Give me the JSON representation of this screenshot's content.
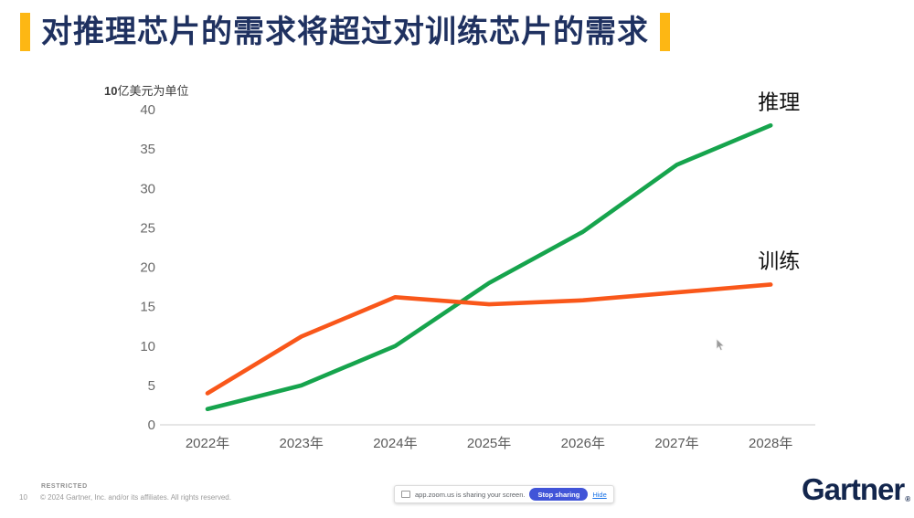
{
  "title": {
    "text": "对推理芯片的需求将超过对训练芯片的需求"
  },
  "chart_data": {
    "type": "line",
    "title": "",
    "unit_label_bold": "10",
    "unit_label_rest": "亿美元为单位",
    "categories": [
      "2022年",
      "2023年",
      "2024年",
      "2025年",
      "2026年",
      "2027年",
      "2028年"
    ],
    "series": [
      {
        "name": "推理",
        "color": "#16a44d",
        "values": [
          2,
          5,
          10,
          18,
          24.5,
          33,
          38
        ]
      },
      {
        "name": "训练",
        "color": "#f9571a",
        "values": [
          4,
          11.2,
          16.2,
          15.3,
          15.8,
          16.8,
          17.8
        ]
      }
    ],
    "ylim": [
      0,
      40
    ],
    "yticks": [
      0,
      5,
      10,
      15,
      20,
      25,
      30,
      35,
      40
    ],
    "grid": false,
    "legend_position": "end-of-line-labels"
  },
  "footer": {
    "restricted": "RESTRICTED",
    "page_number": "10",
    "copyright": "© 2024 Gartner, Inc. and/or its affiliates. All rights reserved.",
    "logo_text": "Gartner",
    "logo_reg": "®"
  },
  "share_bar": {
    "message": "app.zoom.us is sharing your screen.",
    "stop_button": "Stop sharing",
    "hide_link": "Hide"
  },
  "colors": {
    "accent_yellow": "#fdb714",
    "title_navy": "#1f3160",
    "inference_green": "#16a44d",
    "training_orange": "#f9571a",
    "logo_navy": "#13264d",
    "stop_button_blue": "#4154d8",
    "hide_link_blue": "#1a73e8"
  }
}
